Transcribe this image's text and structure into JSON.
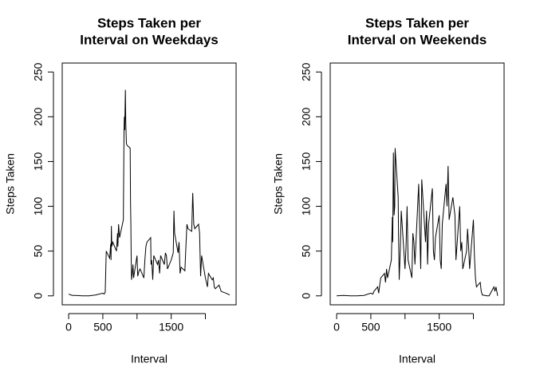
{
  "chart_data": [
    {
      "type": "line",
      "title": [
        "Steps Taken per",
        "Interval on Weekdays"
      ],
      "x_label": "Interval",
      "y_label": "Steps Taken",
      "xlim": [
        -94,
        2449
      ],
      "ylim": [
        -10,
        260
      ],
      "xticks": [
        0,
        500,
        {
          "value": 1000,
          "label": null
        },
        1500,
        {
          "value": 2000,
          "label": null
        }
      ],
      "yticks": [
        0,
        50,
        100,
        150,
        200,
        250
      ],
      "series": [
        {
          "name": null,
          "color": "#000000",
          "x": [
            0,
            50,
            100,
            200,
            300,
            400,
            500,
            520,
            535,
            550,
            600,
            615,
            620,
            625,
            630,
            645,
            700,
            715,
            720,
            730,
            745,
            800,
            810,
            815,
            820,
            830,
            835,
            845,
            855,
            900,
            905,
            910,
            915,
            920,
            930,
            940,
            950,
            1000,
            1010,
            1030,
            1045,
            1100,
            1115,
            1130,
            1145,
            1200,
            1205,
            1215,
            1230,
            1245,
            1300,
            1315,
            1330,
            1345,
            1400,
            1415,
            1430,
            1445,
            1500,
            1530,
            1540,
            1550,
            1600,
            1615,
            1630,
            1645,
            1700,
            1715,
            1730,
            1745,
            1800,
            1815,
            1830,
            1845,
            1900,
            1915,
            1930,
            1945,
            2000,
            2015,
            2030,
            2045,
            2100,
            2115,
            2130,
            2145,
            2200,
            2230,
            2300,
            2330,
            2355
          ],
          "values": [
            2,
            0.5,
            0.5,
            0,
            0,
            1,
            3,
            2,
            4,
            50,
            42,
            58,
            40,
            78,
            55,
            60,
            50,
            70,
            55,
            80,
            65,
            85,
            185,
            200,
            185,
            230,
            195,
            170,
            168,
            165,
            105,
            80,
            40,
            18,
            25,
            35,
            20,
            45,
            22,
            28,
            30,
            20,
            40,
            55,
            60,
            65,
            35,
            40,
            18,
            45,
            35,
            40,
            25,
            45,
            35,
            48,
            45,
            30,
            40,
            48,
            95,
            70,
            48,
            60,
            25,
            32,
            28,
            55,
            80,
            75,
            72,
            115,
            80,
            75,
            80,
            70,
            22,
            45,
            20,
            15,
            10,
            25,
            18,
            20,
            10,
            8,
            12,
            5,
            3,
            2,
            1
          ]
        }
      ]
    },
    {
      "type": "line",
      "title": [
        "Steps Taken per",
        "Interval on Weekends"
      ],
      "x_label": "Interval",
      "y_label": "Steps Taken",
      "xlim": [
        -94,
        2449
      ],
      "ylim": [
        -10,
        260
      ],
      "xticks": [
        0,
        500,
        {
          "value": 1000,
          "label": null
        },
        1500,
        {
          "value": 2000,
          "label": null
        }
      ],
      "yticks": [
        0,
        50,
        100,
        150,
        200,
        250
      ],
      "series": [
        {
          "name": null,
          "color": "#000000",
          "x": [
            0,
            100,
            200,
            300,
            400,
            500,
            530,
            545,
            600,
            615,
            630,
            645,
            700,
            715,
            730,
            745,
            800,
            815,
            820,
            830,
            840,
            850,
            855,
            900,
            905,
            915,
            930,
            945,
            1000,
            1015,
            1030,
            1045,
            1100,
            1115,
            1130,
            1145,
            1200,
            1215,
            1230,
            1245,
            1300,
            1315,
            1330,
            1345,
            1400,
            1415,
            1430,
            1445,
            1500,
            1515,
            1530,
            1545,
            1600,
            1615,
            1630,
            1645,
            1700,
            1715,
            1730,
            1745,
            1800,
            1815,
            1830,
            1845,
            1900,
            1915,
            1930,
            1945,
            2000,
            2015,
            2030,
            2045,
            2100,
            2115,
            2130,
            2200,
            2230,
            2300,
            2315,
            2330,
            2355
          ],
          "values": [
            0,
            0.5,
            0,
            0,
            0.5,
            3,
            2,
            5,
            10,
            3,
            12,
            20,
            25,
            15,
            30,
            20,
            40,
            88,
            60,
            160,
            90,
            100,
            165,
            110,
            70,
            18,
            50,
            95,
            30,
            55,
            100,
            40,
            20,
            70,
            60,
            35,
            125,
            75,
            30,
            130,
            60,
            95,
            35,
            80,
            120,
            50,
            40,
            65,
            90,
            40,
            30,
            80,
            125,
            100,
            145,
            85,
            110,
            100,
            90,
            40,
            100,
            50,
            60,
            30,
            50,
            75,
            55,
            30,
            85,
            45,
            20,
            10,
            15,
            5,
            1,
            0,
            0,
            10,
            5,
            10,
            0
          ]
        }
      ]
    }
  ]
}
